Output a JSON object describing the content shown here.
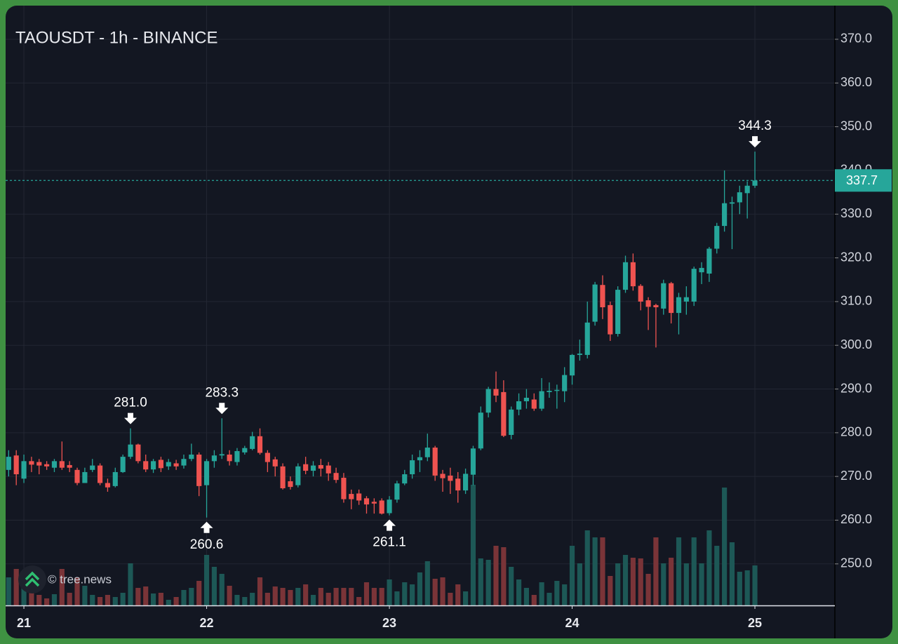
{
  "chart_data": {
    "type": "candlestick",
    "title": "TAOUSDT - 1h - BINANCE",
    "watermark": "© tree.news",
    "up_color": "#26a69a",
    "down_color": "#ef5350",
    "volume_up_color": "#1d5856",
    "volume_down_color": "#7a3438",
    "grid": true,
    "xlim": [
      -0.4,
      108.5
    ],
    "xticks": [
      {
        "value": 2,
        "label": "21"
      },
      {
        "value": 26,
        "label": "22"
      },
      {
        "value": 50,
        "label": "23"
      },
      {
        "value": 74,
        "label": "24"
      },
      {
        "value": 98,
        "label": "25"
      }
    ],
    "ylim": [
      240.5,
      377.7
    ],
    "yticks": [
      {
        "value": 250,
        "label": "250.0"
      },
      {
        "value": 260,
        "label": "260.0"
      },
      {
        "value": 270,
        "label": "270.0"
      },
      {
        "value": 280,
        "label": "280.0"
      },
      {
        "value": 290,
        "label": "290.0"
      },
      {
        "value": 300,
        "label": "300.0"
      },
      {
        "value": 310,
        "label": "310.0"
      },
      {
        "value": 320,
        "label": "320.0"
      },
      {
        "value": 330,
        "label": "330.0"
      },
      {
        "value": 340,
        "label": "340.0"
      },
      {
        "value": 350,
        "label": "350.0"
      },
      {
        "value": 360,
        "label": "360.0"
      },
      {
        "value": 370,
        "label": "370.0"
      }
    ],
    "last_price": {
      "value": 337.7,
      "label": "337.7"
    },
    "annotations": [
      {
        "value": 281.0,
        "label": "281.0"
      },
      {
        "value": 283.3,
        "label": "283.3"
      },
      {
        "value": 344.3,
        "label": "344.3"
      },
      {
        "value": 260.6,
        "label": "260.6"
      },
      {
        "value": 261.1,
        "label": "261.1"
      }
    ],
    "open": [
      271.5,
      274.8,
      269.5,
      273.5,
      273.3,
      272.8,
      272,
      273.5,
      272.6,
      271.5,
      268.5,
      271.5,
      272.5,
      268.5,
      267.8,
      271,
      274.5,
      277.3,
      273.5,
      271.6,
      273.8,
      272.3,
      273,
      272.5,
      274,
      275,
      268,
      273.5,
      274.8,
      275,
      273.3,
      275.5,
      276.3,
      279.2,
      275.4,
      273.9,
      272.3,
      268.9,
      268,
      272.8,
      271.3,
      272.6,
      272.5,
      270.8,
      269.7,
      266,
      266.1,
      265,
      264.2,
      264.5,
      261.6,
      264.7,
      268.4,
      270.5,
      273.7,
      274.4,
      276.6,
      270.6,
      270.2,
      269.5,
      266.8,
      270.4,
      276.4,
      284.6,
      290,
      289.3,
      279.5,
      285.3,
      287.2,
      287.6,
      285.5,
      289.3,
      289.6,
      289.5,
      293.1,
      297.8,
      297.8,
      305.4,
      313.8,
      309.2,
      302.6,
      312.7,
      319,
      313.6,
      310.3,
      309.2,
      308.4,
      314.2,
      307.4,
      310,
      310,
      316.7,
      316.4,
      322.1,
      327.3,
      332.4,
      332.7,
      334.8,
      336.5
    ],
    "high": [
      276,
      276,
      275,
      274.5,
      274,
      273.5,
      274,
      278,
      273.5,
      272,
      272,
      274,
      273,
      269.5,
      272,
      275,
      281.0,
      277.5,
      275,
      274,
      274.5,
      274,
      273.8,
      275,
      277.5,
      275.5,
      274,
      276,
      283.3,
      276,
      276.5,
      277,
      280.2,
      281,
      276,
      274.5,
      273,
      270,
      273,
      274.5,
      273.5,
      274,
      273.3,
      272,
      270.8,
      267,
      267,
      265.5,
      265,
      265,
      265.5,
      269,
      271.5,
      275,
      276,
      279.8,
      277,
      271.5,
      272,
      271,
      271.8,
      277,
      286,
      290.5,
      294,
      292,
      286,
      289,
      290,
      289,
      292.5,
      291.5,
      291,
      295,
      298,
      301.3,
      310,
      314.5,
      316,
      310,
      313.5,
      320.5,
      321,
      314,
      311,
      309.5,
      315,
      314.5,
      312,
      313.5,
      318,
      319,
      322.5,
      328,
      340,
      334,
      336.5,
      337.5,
      344.3
    ],
    "low": [
      270,
      268,
      268.5,
      271,
      270.5,
      271.5,
      271,
      271.5,
      271,
      268,
      268.5,
      271,
      268,
      266.5,
      267.5,
      270.8,
      274,
      273,
      271,
      270.8,
      271,
      271.5,
      271.5,
      271.8,
      273.5,
      265.5,
      260.6,
      272,
      274,
      272.5,
      272.5,
      275,
      276,
      275,
      271,
      270,
      267,
      267,
      267.5,
      270.5,
      270,
      270,
      269,
      268.5,
      264,
      262.5,
      263.5,
      261.5,
      261.5,
      261.3,
      261.1,
      264,
      268,
      269.5,
      271,
      273.5,
      269,
      266.5,
      266,
      264,
      266,
      268,
      276,
      283.5,
      287,
      279,
      278.5,
      284,
      285.5,
      285,
      285,
      288,
      285.5,
      287,
      291,
      296.5,
      297,
      304.5,
      306,
      301,
      302,
      312,
      312.5,
      308,
      303.5,
      299.5,
      307,
      305,
      302.5,
      307,
      309,
      314,
      314.5,
      321,
      326,
      322,
      330,
      329,
      336
    ],
    "close": [
      274.5,
      270.5,
      273.5,
      272.7,
      272.5,
      272.3,
      273.5,
      272,
      272,
      268.5,
      271,
      272.5,
      268.5,
      267.5,
      271,
      274.5,
      277.3,
      273.5,
      271.6,
      273.5,
      271.9,
      273.3,
      272.3,
      274,
      275,
      267.8,
      273.5,
      274.8,
      275.1,
      273.5,
      275.8,
      276.5,
      279.2,
      275.4,
      273.3,
      272.3,
      267.3,
      267.6,
      272.3,
      271.3,
      272.5,
      271.8,
      270.7,
      269.2,
      264.8,
      264.8,
      264.5,
      263.6,
      263.8,
      261.5,
      264.7,
      268.4,
      270.5,
      273.7,
      274.4,
      276.6,
      270.2,
      269.6,
      269,
      266.8,
      270.6,
      276.4,
      284.6,
      290,
      288.5,
      279.3,
      285.3,
      287.2,
      288,
      285.5,
      289.5,
      289.6,
      289.8,
      293.2,
      297.8,
      298.1,
      305.2,
      313.9,
      308.7,
      302.5,
      312.7,
      319,
      313.5,
      310,
      308.8,
      308.7,
      314.2,
      307.4,
      311,
      311,
      317.5,
      317.7,
      322.1,
      327.3,
      332.5,
      332.7,
      335,
      336.5,
      337.7
    ],
    "volume": [
      40,
      52,
      35,
      22,
      15,
      10,
      16,
      52,
      18,
      40,
      28,
      15,
      12,
      15,
      12,
      18,
      60,
      25,
      27,
      17,
      18,
      8,
      12,
      22,
      25,
      35,
      72,
      55,
      45,
      28,
      15,
      12,
      18,
      40,
      18,
      27,
      25,
      22,
      25,
      30,
      15,
      25,
      18,
      25,
      25,
      25,
      12,
      33,
      25,
      25,
      37,
      20,
      33,
      30,
      47,
      63,
      38,
      40,
      18,
      30,
      20,
      172,
      67,
      65,
      85,
      83,
      55,
      37,
      25,
      15,
      33,
      18,
      35,
      30,
      85,
      60,
      107,
      97,
      97,
      42,
      60,
      72,
      68,
      67,
      45,
      97,
      60,
      68,
      97,
      60,
      97,
      60,
      107,
      85,
      168,
      90,
      48,
      50,
      57
    ]
  }
}
